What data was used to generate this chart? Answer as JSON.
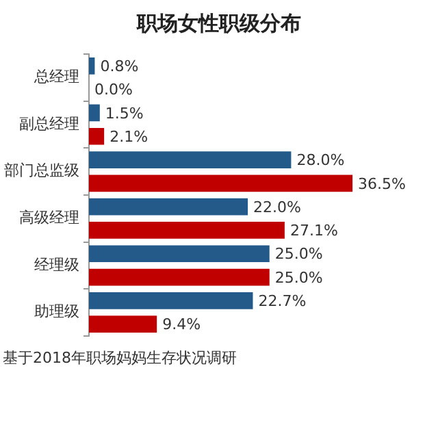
{
  "chart_data": {
    "type": "bar",
    "orientation": "horizontal",
    "title": "职场女性职级分布",
    "categories": [
      "总经理",
      "副总经理",
      "部门总监级",
      "高级经理",
      "经理级",
      "助理级"
    ],
    "series": [
      {
        "color": "#245a8a",
        "values": [
          0.8,
          1.5,
          28.0,
          22.0,
          25.0,
          22.7
        ],
        "value_labels": [
          "0.8%",
          "1.5%",
          "28.0%",
          "22.0%",
          "25.0%",
          "22.7%"
        ]
      },
      {
        "color": "#c00000",
        "values": [
          0.0,
          2.1,
          36.5,
          27.1,
          25.0,
          9.4
        ],
        "value_labels": [
          "0.0%",
          "2.1%",
          "36.5%",
          "27.1%",
          "25.0%",
          "9.4%"
        ]
      }
    ],
    "grid": false,
    "legend": false,
    "annotations": [
      "基于2018年职场妈妈生存状况调研"
    ]
  }
}
